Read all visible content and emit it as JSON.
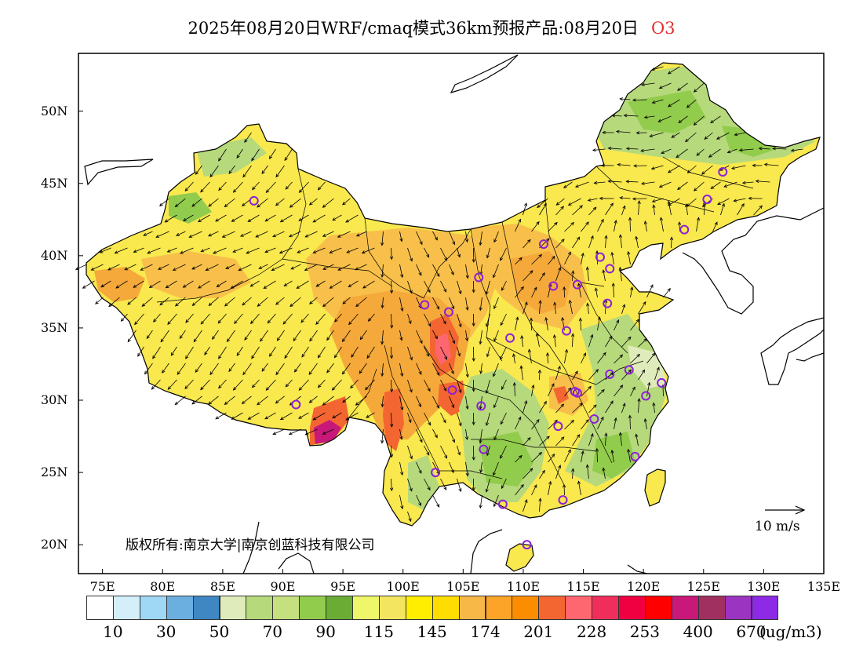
{
  "title": {
    "main": "2025年08月20日WRF/cmaq模式36km预报产品:08月20日",
    "pollutant": "O3"
  },
  "axes": {
    "lon_ticks": [
      "75E",
      "80E",
      "85E",
      "90E",
      "95E",
      "100E",
      "105E",
      "110E",
      "115E",
      "120E",
      "125E",
      "130E",
      "135E"
    ],
    "lat_ticks": [
      "50N",
      "45N",
      "40N",
      "35N",
      "30N",
      "25N",
      "20N"
    ]
  },
  "copyright": "版权所有:南京大学|南京创蓝科技有限公司",
  "wind_reference": {
    "label": "10 m/s"
  },
  "colorbar": {
    "unit": "(ug/m3)",
    "labels": [
      "10",
      "30",
      "50",
      "70",
      "90",
      "115",
      "145",
      "174",
      "201",
      "228",
      "253",
      "400",
      "670"
    ],
    "colors": [
      "#ffffff",
      "#d4eefa",
      "#9ed8f4",
      "#6aafdf",
      "#3e87c2",
      "#e0ebbb",
      "#b6d97c",
      "#c4e07f",
      "#92cc4c",
      "#6aac34",
      "#eef66a",
      "#f3e560",
      "#ffee00",
      "#ffdd00",
      "#f8b848",
      "#fba428",
      "#fc8c00",
      "#f36632",
      "#fe6670",
      "#f02e5c",
      "#f00040",
      "#ff0000",
      "#c8187a",
      "#a03060",
      "#9c34c2",
      "#8c2ae6"
    ]
  },
  "colors": {
    "map_border": "#000000",
    "site_marker": "#8c20d8",
    "accent_title": "#e03030"
  },
  "map": {
    "extent": {
      "lon": [
        73,
        135
      ],
      "lat": [
        18,
        54
      ]
    },
    "sites": [
      [
        87.6,
        43.8
      ],
      [
        91.1,
        29.7
      ],
      [
        101.8,
        36.6
      ],
      [
        103.8,
        36.1
      ],
      [
        104.1,
        30.7
      ],
      [
        106.3,
        38.5
      ],
      [
        106.7,
        26.6
      ],
      [
        102.7,
        25.0
      ],
      [
        108.3,
        22.8
      ],
      [
        110.3,
        20.0
      ],
      [
        108.9,
        34.3
      ],
      [
        106.5,
        29.6
      ],
      [
        111.7,
        40.8
      ],
      [
        112.5,
        37.9
      ],
      [
        114.5,
        38.0
      ],
      [
        113.6,
        34.8
      ],
      [
        114.3,
        30.6
      ],
      [
        112.9,
        28.2
      ],
      [
        113.3,
        23.1
      ],
      [
        115.9,
        28.7
      ],
      [
        117.0,
        36.7
      ],
      [
        117.2,
        31.8
      ],
      [
        118.8,
        32.1
      ],
      [
        120.2,
        30.3
      ],
      [
        121.5,
        31.2
      ],
      [
        119.3,
        26.1
      ],
      [
        116.4,
        39.9
      ],
      [
        117.2,
        39.1
      ],
      [
        123.4,
        41.8
      ],
      [
        125.3,
        43.9
      ],
      [
        126.6,
        45.8
      ],
      [
        114.5,
        30.5
      ]
    ]
  }
}
